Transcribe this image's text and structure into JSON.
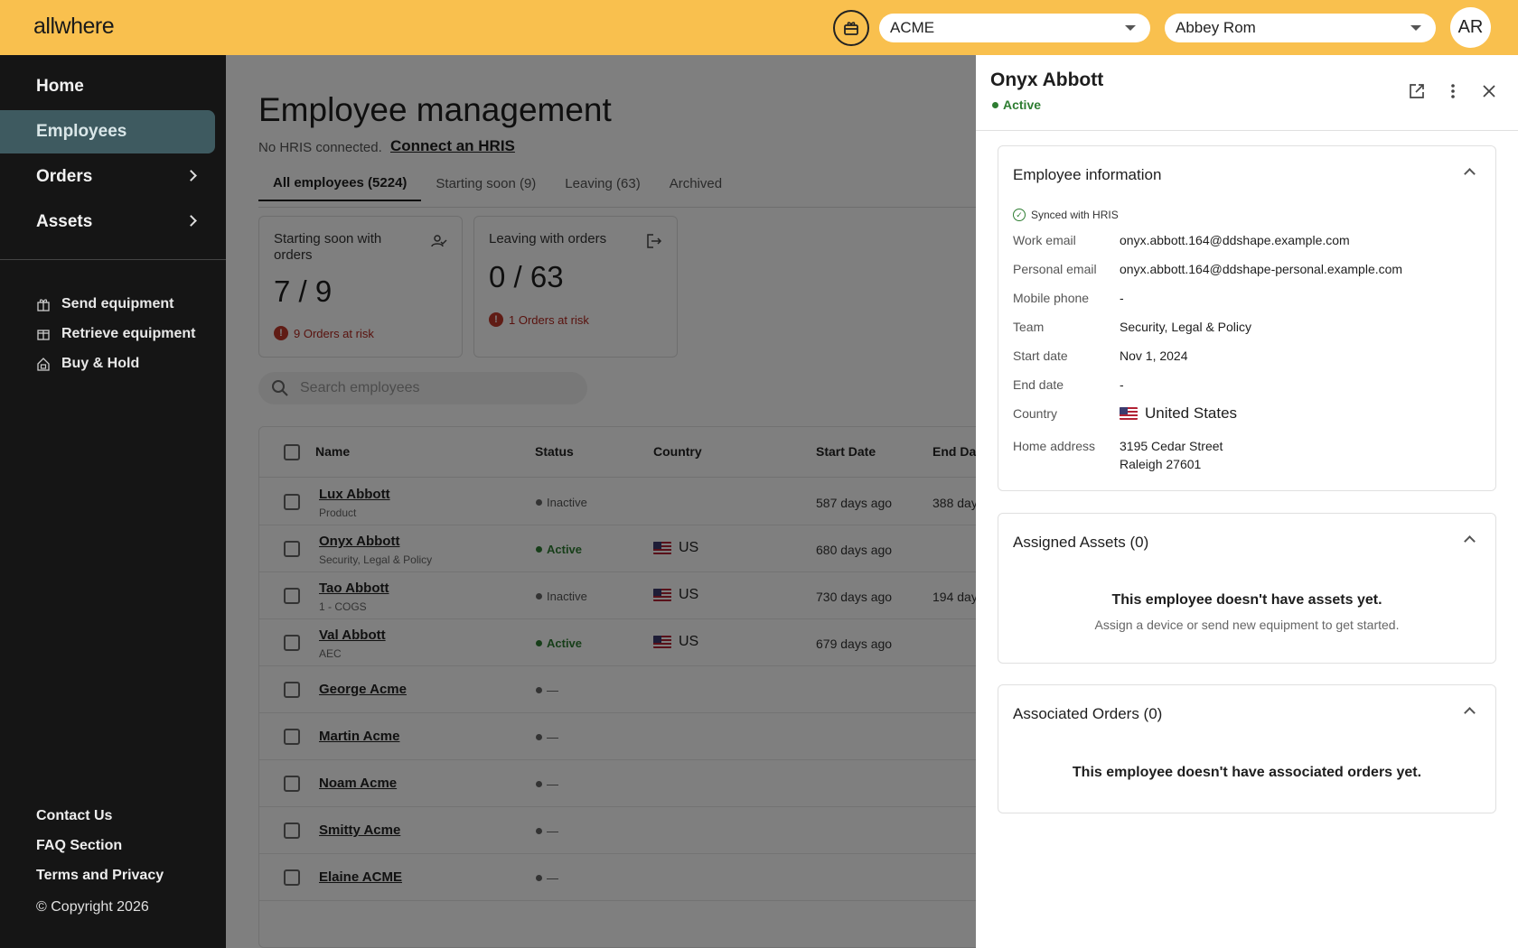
{
  "topbar": {
    "logo": "allwhere",
    "org_select": "ACME",
    "user_select": "Abbey Rom",
    "avatar_initials": "AR"
  },
  "sidebar": {
    "nav": [
      {
        "label": "Home"
      },
      {
        "label": "Employees"
      },
      {
        "label": "Orders"
      },
      {
        "label": "Assets"
      }
    ],
    "actions": [
      {
        "label": "Send equipment",
        "icon": "gift-icon"
      },
      {
        "label": "Retrieve equipment",
        "icon": "box-icon"
      },
      {
        "label": "Buy & Hold",
        "icon": "home-box-icon"
      }
    ],
    "footer": {
      "contact": "Contact Us",
      "faq": "FAQ Section",
      "terms": "Terms and Privacy",
      "copyright": "© Copyright 2026"
    }
  },
  "main": {
    "title": "Employee management",
    "hris_note": "No HRIS connected.",
    "hris_link": "Connect an HRIS",
    "tabs": [
      {
        "label": "All employees (5224)"
      },
      {
        "label": "Starting soon (9)"
      },
      {
        "label": "Leaving (63)"
      },
      {
        "label": "Archived"
      }
    ],
    "cards": [
      {
        "title": "Starting soon with orders",
        "value": "7 / 9",
        "risk": "9 Orders at risk"
      },
      {
        "title": "Leaving with orders",
        "value": "0 / 63",
        "risk": "1 Orders at risk"
      }
    ],
    "search_placeholder": "Search employees",
    "table": {
      "headers": {
        "name": "Name",
        "status": "Status",
        "country": "Country",
        "start_date": "Start Date",
        "end_date": "End Da"
      },
      "rows": [
        {
          "name": "Lux Abbott",
          "team": "Product",
          "status": "Inactive",
          "country": "",
          "start": "587 days ago",
          "end": "388 day"
        },
        {
          "name": "Onyx Abbott",
          "team": "Security, Legal & Policy",
          "status": "Active",
          "country": "US",
          "start": "680 days ago",
          "end": ""
        },
        {
          "name": "Tao Abbott",
          "team": "1 - COGS",
          "status": "Inactive",
          "country": "US",
          "start": "730 days ago",
          "end": "194 day"
        },
        {
          "name": "Val Abbott",
          "team": "AEC",
          "status": "Active",
          "country": "US",
          "start": "679 days ago",
          "end": ""
        },
        {
          "name": "George Acme",
          "team": "",
          "status": "—",
          "country": "",
          "start": "",
          "end": ""
        },
        {
          "name": "Martin Acme",
          "team": "",
          "status": "—",
          "country": "",
          "start": "",
          "end": ""
        },
        {
          "name": "Noam Acme",
          "team": "",
          "status": "—",
          "country": "",
          "start": "",
          "end": ""
        },
        {
          "name": "Smitty Acme",
          "team": "",
          "status": "—",
          "country": "",
          "start": "",
          "end": ""
        },
        {
          "name": "Elaine ACME",
          "team": "",
          "status": "—",
          "country": "",
          "start": "",
          "end": ""
        }
      ]
    }
  },
  "drawer": {
    "name": "Onyx Abbott",
    "status": "Active",
    "employee_info": {
      "title": "Employee information",
      "sync": "Synced with HRIS",
      "fields": [
        {
          "label": "Work email",
          "value": "onyx.abbott.164@ddshape.example.com"
        },
        {
          "label": "Personal email",
          "value": "onyx.abbott.164@ddshape-personal.example.com"
        },
        {
          "label": "Mobile phone",
          "value": "-"
        },
        {
          "label": "Team",
          "value": "Security, Legal & Policy"
        },
        {
          "label": "Start date",
          "value": "Nov 1, 2024"
        },
        {
          "label": "End date",
          "value": "-"
        },
        {
          "label": "Country",
          "value": "United States"
        },
        {
          "label": "Home address",
          "value": "3195 Cedar Street",
          "value2": "Raleigh 27601"
        }
      ]
    },
    "assets": {
      "title": "Assigned Assets (0)",
      "empty_title": "This employee doesn't have assets yet.",
      "empty_sub": "Assign a device or send new equipment to get started."
    },
    "orders": {
      "title": "Associated Orders (0)",
      "empty_title": "This employee doesn't have associated orders yet."
    }
  },
  "colors": {
    "accent": "#f9c04e",
    "sidebar": "#151515",
    "active_nav": "#3e5a60",
    "active_status": "#2e7d32",
    "risk": "#b3261e"
  }
}
